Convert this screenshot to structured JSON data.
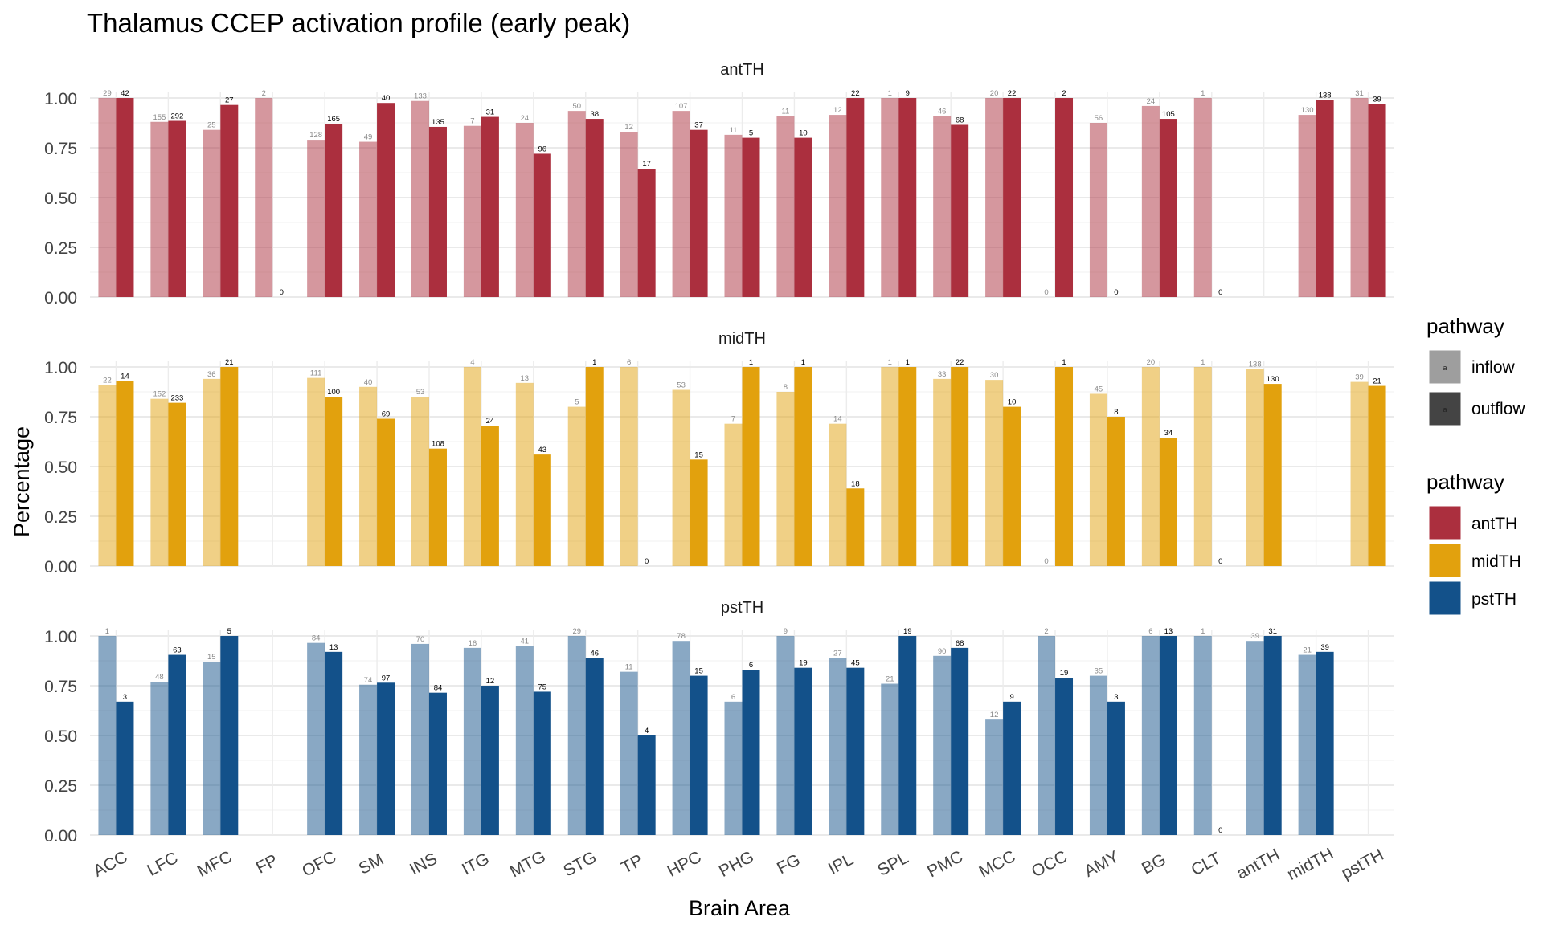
{
  "chart_data": {
    "type": "bar",
    "title": "Thalamus CCEP activation profile (early peak)",
    "xlabel": "Brain Area",
    "ylabel": "Percentage",
    "ylim": [
      0,
      1.05
    ],
    "yticks": [
      "0.00",
      "0.25",
      "0.50",
      "0.75",
      "1.00"
    ],
    "categories": [
      "ACC",
      "LFC",
      "MFC",
      "FP",
      "OFC",
      "SM",
      "INS",
      "ITG",
      "MTG",
      "STG",
      "TP",
      "HPC",
      "PHG",
      "FG",
      "IPL",
      "SPL",
      "PMC",
      "MCC",
      "OCC",
      "AMY",
      "BG",
      "CLT",
      "antTH",
      "midTH",
      "pstTH"
    ],
    "legend_placement": "right",
    "legend_fill": {
      "title": "pathway",
      "items": [
        {
          "label": "inflow",
          "key_text": "a",
          "color": "#9e9e9e"
        },
        {
          "label": "outflow",
          "key_text": "a",
          "color": "#444444"
        }
      ]
    },
    "legend_color": {
      "title": "pathway",
      "items": [
        {
          "label": "antTH",
          "color": "#ab2f3e"
        },
        {
          "label": "midTH",
          "color": "#e2a10d"
        },
        {
          "label": "pstTH",
          "color": "#13518a"
        }
      ]
    },
    "panels": [
      {
        "title": "antTH",
        "color": "#ab2f3e",
        "inflow": [
          1.0,
          0.88,
          0.84,
          1.0,
          0.79,
          0.78,
          0.985,
          0.86,
          0.875,
          0.935,
          0.83,
          0.935,
          0.815,
          0.91,
          0.915,
          1.0,
          0.91,
          1.0,
          0,
          0.875,
          0.96,
          1.0,
          null,
          0.915,
          1.0
        ],
        "inflow_labels": [
          "29",
          "155",
          "25",
          "2",
          "128",
          "49",
          "133",
          "7",
          "24",
          "50",
          "12",
          "107",
          "11",
          "11",
          "12",
          "1",
          "46",
          "20",
          "0",
          "56",
          "24",
          "1",
          "",
          "130",
          "31"
        ],
        "outflow": [
          1.0,
          0.885,
          0.965,
          0,
          0.87,
          0.975,
          0.855,
          0.905,
          0.72,
          0.895,
          0.645,
          0.84,
          0.8,
          0.8,
          1.0,
          1.0,
          0.865,
          1.0,
          1.0,
          0,
          0.895,
          0,
          null,
          0.99,
          0.97
        ],
        "outflow_labels": [
          "42",
          "292",
          "27",
          "0",
          "165",
          "40",
          "135",
          "31",
          "96",
          "38",
          "17",
          "37",
          "5",
          "10",
          "22",
          "9",
          "68",
          "22",
          "2",
          "0",
          "105",
          "0",
          "",
          "138",
          "39"
        ]
      },
      {
        "title": "midTH",
        "color": "#e2a10d",
        "inflow": [
          0.91,
          0.84,
          0.94,
          null,
          0.945,
          0.9,
          0.85,
          1.0,
          0.92,
          0.8,
          1.0,
          0.885,
          0.715,
          0.875,
          0.715,
          1.0,
          0.94,
          0.935,
          0,
          0.865,
          1.0,
          1.0,
          0.99,
          null,
          0.925
        ],
        "inflow_labels": [
          "22",
          "152",
          "36",
          "",
          "111",
          "40",
          "53",
          "4",
          "13",
          "5",
          "6",
          "53",
          "7",
          "8",
          "14",
          "1",
          "33",
          "30",
          "0",
          "45",
          "20",
          "1",
          "138",
          "",
          "39"
        ],
        "outflow": [
          0.93,
          0.82,
          1.0,
          null,
          0.85,
          0.74,
          0.59,
          0.705,
          0.56,
          1.0,
          0,
          0.535,
          1.0,
          1.0,
          0.39,
          1.0,
          1.0,
          0.8,
          1.0,
          0.75,
          0.645,
          0,
          0.915,
          null,
          0.905
        ],
        "outflow_labels": [
          "14",
          "233",
          "21",
          "",
          "100",
          "69",
          "108",
          "24",
          "43",
          "1",
          "0",
          "15",
          "1",
          "1",
          "18",
          "1",
          "22",
          "10",
          "1",
          "8",
          "34",
          "0",
          "130",
          "",
          "21"
        ]
      },
      {
        "title": "pstTH",
        "color": "#13518a",
        "inflow": [
          1.0,
          0.77,
          0.87,
          null,
          0.965,
          0.755,
          0.96,
          0.94,
          0.95,
          1.0,
          0.82,
          0.975,
          0.67,
          1.0,
          0.89,
          0.76,
          0.9,
          0.58,
          1.0,
          0.8,
          1.0,
          1.0,
          0.975,
          0.905,
          null
        ],
        "inflow_labels": [
          "1",
          "48",
          "15",
          "",
          "84",
          "74",
          "70",
          "16",
          "41",
          "29",
          "11",
          "78",
          "6",
          "9",
          "27",
          "21",
          "90",
          "12",
          "2",
          "35",
          "6",
          "1",
          "39",
          "21",
          ""
        ],
        "outflow": [
          0.67,
          0.905,
          1.0,
          null,
          0.92,
          0.765,
          0.715,
          0.75,
          0.72,
          0.89,
          0.5,
          0.8,
          0.83,
          0.84,
          0.84,
          1.0,
          0.94,
          0.67,
          0.79,
          0.67,
          1.0,
          0,
          1.0,
          0.92,
          null
        ],
        "outflow_labels": [
          "3",
          "63",
          "5",
          "",
          "13",
          "97",
          "84",
          "12",
          "75",
          "46",
          "4",
          "15",
          "6",
          "19",
          "45",
          "19",
          "68",
          "9",
          "19",
          "3",
          "13",
          "0",
          "31",
          "39",
          ""
        ]
      }
    ]
  }
}
